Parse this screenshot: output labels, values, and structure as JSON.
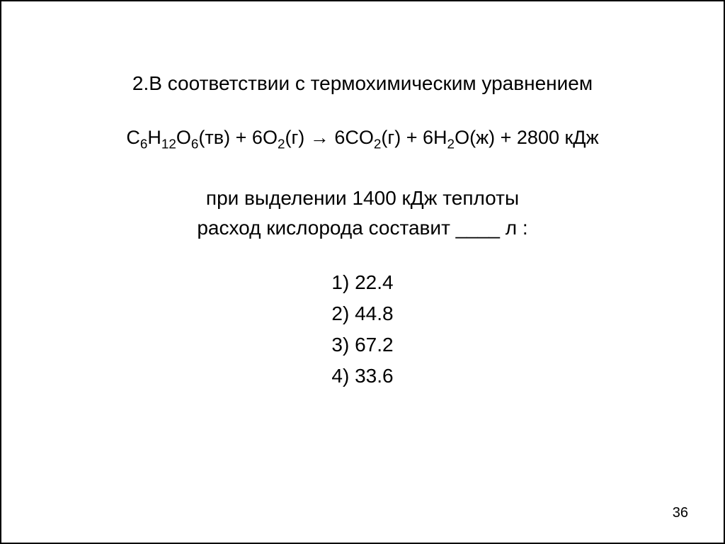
{
  "slide": {
    "problem_number": "2.",
    "intro_text": "В соответствии с термохимическим уравнением",
    "equation": {
      "reactant1": {
        "element1": "C",
        "sub1": "6",
        "element2": "H",
        "sub2": "12",
        "element3": "O",
        "sub3": "6",
        "state": "(тв)"
      },
      "plus1": " + ",
      "reactant2": {
        "coeff": "6",
        "element": "O",
        "sub": "2",
        "state": "(г)"
      },
      "arrow": " → ",
      "product1": {
        "coeff": "6",
        "element1": "C",
        "element2": "O",
        "sub": "2",
        "state": "(г)"
      },
      "plus2": " + ",
      "product2": {
        "coeff": "6",
        "element1": "H",
        "sub1": "2",
        "element2": "O",
        "state": "(ж)"
      },
      "plus3": " + ",
      "energy": "2800 кДж"
    },
    "question_line1": "при выделении 1400 кДж теплоты",
    "question_line2_a": "расход кислорода составит ",
    "blank": "____",
    "question_line2_b": " л :",
    "options": {
      "opt1": "1) 22.4",
      "opt2": "2) 44.8",
      "opt3": "3) 67.2",
      "opt4": "4) 33.6"
    },
    "page_number": "36",
    "colors": {
      "background": "#ffffff",
      "text": "#000000",
      "border": "#000000"
    },
    "typography": {
      "main_fontsize": 28,
      "equation_fontsize": 27,
      "page_number_fontsize": 20,
      "font_family": "Arial"
    }
  }
}
